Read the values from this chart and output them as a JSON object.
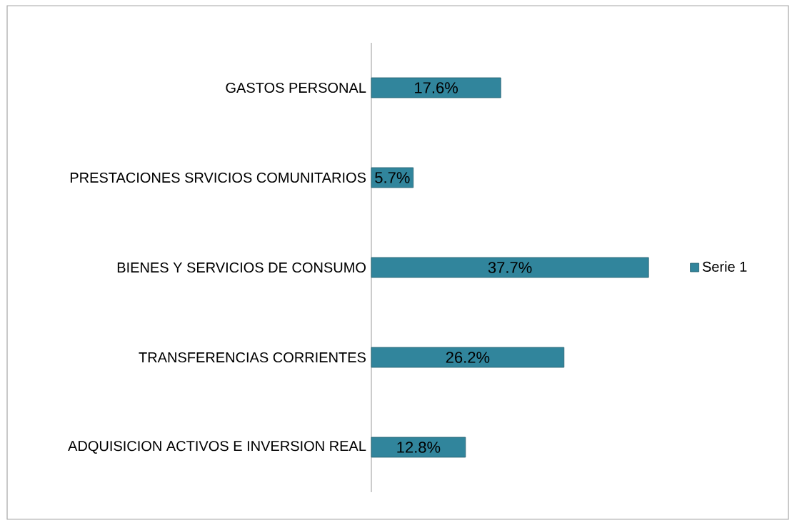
{
  "chart_data": {
    "type": "bar",
    "orientation": "horizontal",
    "categories": [
      "GASTOS PERSONAL",
      "PRESTACIONES SRVICIOS COMUNITARIOS",
      "BIENES Y SERVICIOS DE CONSUMO",
      "TRANSFERENCIAS CORRIENTES",
      "ADQUISICION ACTIVOS E INVERSION REAL"
    ],
    "series": [
      {
        "name": "Serie 1",
        "color": "#31859c",
        "values": [
          17.6,
          5.7,
          37.7,
          26.2,
          12.8
        ],
        "value_labels": [
          "17.6%",
          "5.7%",
          "37.7%",
          "26.2%",
          "12.8%"
        ]
      }
    ],
    "tick_labels": "y",
    "legend": "right"
  }
}
